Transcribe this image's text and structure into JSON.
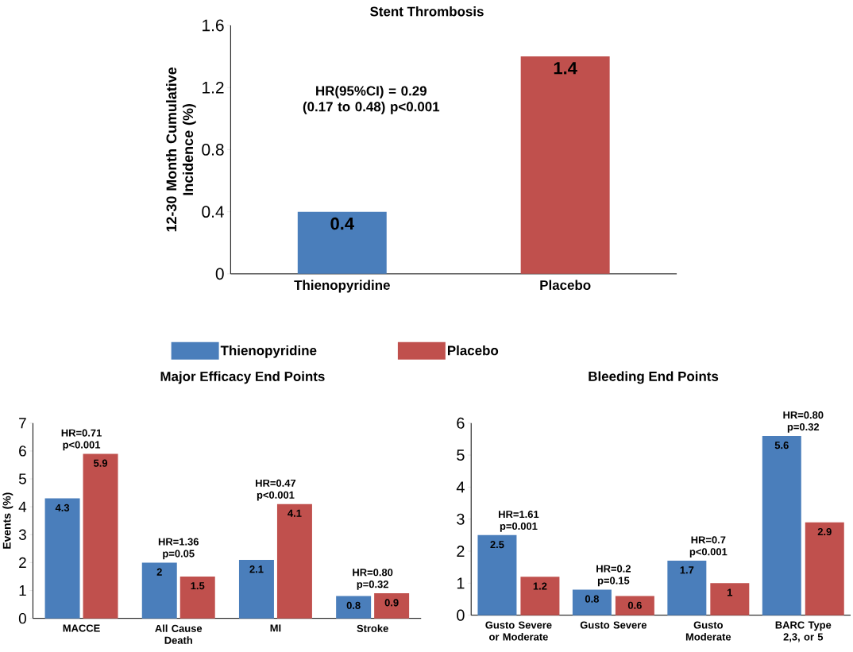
{
  "chart_data": [
    {
      "type": "bar",
      "title": "Stent Thrombosis",
      "ylabel": "12-30 Month Cumulative Incidence (%)",
      "categories": [
        "Thienopyridine",
        "Placebo"
      ],
      "values": [
        0.4,
        1.4
      ],
      "colors": [
        "#4a7ebb",
        "#c0504d"
      ],
      "ylim": [
        0,
        1.6
      ],
      "yticks": [
        0,
        0.4,
        0.8,
        1.2,
        1.6
      ],
      "data_labels": true,
      "annotations": [
        "HR(95%CI) = 0.29 (0.17 to 0.48) p<0.001"
      ]
    },
    {
      "type": "bar",
      "title": "Major Efficacy End Points",
      "ylabel": "Events (%)",
      "categories": [
        "MACCE",
        "All Cause Death",
        "MI",
        "Stroke"
      ],
      "series": [
        {
          "name": "Thienopyridine",
          "color": "#4a7ebb",
          "values": [
            4.3,
            2,
            2.1,
            0.8
          ]
        },
        {
          "name": "Placebo",
          "color": "#c0504d",
          "values": [
            5.9,
            1.5,
            4.1,
            0.9
          ]
        }
      ],
      "ylim": [
        0,
        7
      ],
      "yticks": [
        0,
        1,
        2,
        3,
        4,
        5,
        6,
        7
      ],
      "data_labels": true,
      "legend": "top",
      "annotations": [
        {
          "text": "HR=0.71 p<0.001",
          "x": "MACCE",
          "y": 5.9
        },
        {
          "text": "HR=1.36 p=0.05",
          "x": "All Cause Death",
          "y": 2
        },
        {
          "text": "HR=0.47 p<0.001",
          "x": "MI",
          "y": 4.1
        },
        {
          "text": "HR=0.80 p=0.32",
          "x": "Stroke",
          "y": 0.9
        }
      ]
    },
    {
      "type": "bar",
      "title": "Bleeding End Points",
      "categories": [
        "Gusto Severe or Moderate",
        "Gusto Severe",
        "Gusto Moderate",
        "BARC Type 2,3, or 5"
      ],
      "series": [
        {
          "color": "#4a7ebb",
          "values": [
            2.5,
            0.8,
            1.7,
            5.6
          ]
        },
        {
          "color": "#c0504d",
          "values": [
            1.2,
            0.6,
            1,
            2.9
          ]
        }
      ],
      "ylim": [
        0,
        6
      ],
      "yticks": [
        0,
        1,
        2,
        3,
        4,
        5,
        6
      ],
      "data_labels": true,
      "annotations": [
        {
          "text": "HR=1.61 p=0.001",
          "x": "Gusto Severe or Moderate",
          "y": 2.5
        },
        {
          "text": "HR=0.2 p=0.15",
          "x": "Gusto Severe",
          "y": 0.8
        },
        {
          "text": "HR=0.7 p<0.001",
          "x": "Gusto Moderate",
          "y": 1.7
        },
        {
          "text": "HR=0.80 p=0.32",
          "x": "BARC Type 2,3, or 5",
          "y": 5.6
        }
      ]
    }
  ]
}
